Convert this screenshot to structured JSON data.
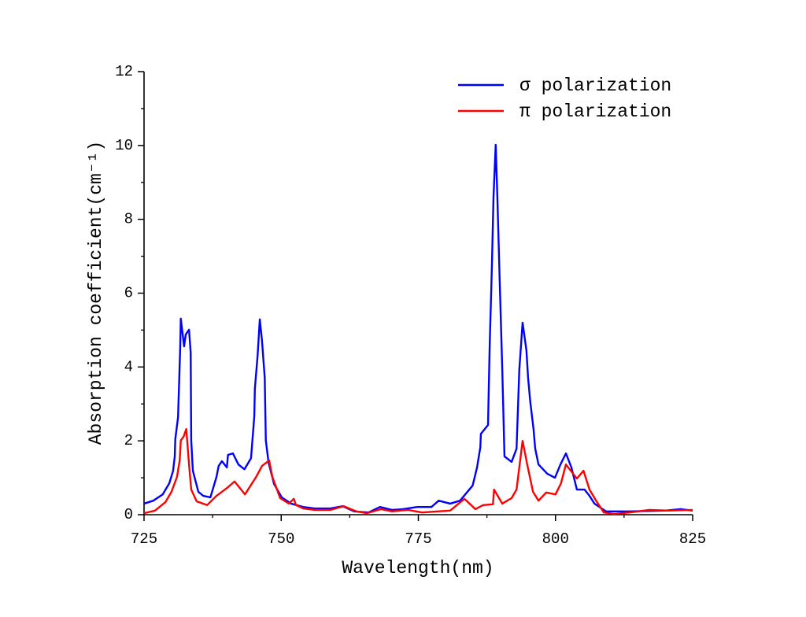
{
  "chart_data": {
    "type": "line",
    "xlabel": "Wavelength(nm)",
    "ylabel": "Absorption coefficient(cm⁻¹)",
    "xlim": [
      725,
      825
    ],
    "ylim": [
      0,
      12
    ],
    "xticks": [
      725,
      750,
      775,
      800,
      825
    ],
    "yticks": [
      0,
      2,
      4,
      6,
      8,
      10,
      12
    ],
    "minor_xticks": [
      737.5,
      762.5,
      787.5,
      812.5
    ],
    "minor_yticks": [
      1,
      3,
      5,
      7,
      9,
      11
    ],
    "legend": "upper right",
    "series": [
      {
        "name": "σ polarization",
        "color": "#0000ff",
        "x": [
          725.0,
          726.7,
          728.4,
          729.6,
          730.3,
          730.6,
          730.7,
          731.2,
          731.5,
          731.6,
          731.7,
          732.3,
          732.6,
          733.2,
          733.5,
          733.6,
          733.9,
          734.9,
          735.8,
          737.1,
          738.2,
          738.6,
          739.2,
          740.1,
          740.3,
          741.2,
          742.2,
          743.3,
          744.5,
          745.1,
          745.2,
          745.7,
          746.1,
          746.5,
          747.0,
          747.2,
          747.7,
          748.7,
          750.1,
          751.8,
          754.0,
          756.1,
          759.0,
          761.2,
          763.3,
          765.9,
          768.0,
          770.2,
          772.2,
          774.8,
          777.4,
          778.7,
          780.8,
          782.6,
          784.9,
          785.7,
          786.3,
          786.4,
          787.7,
          788.0,
          788.4,
          788.7,
          789.1,
          789.4,
          789.8,
          790.3,
          790.7,
          792.0,
          792.9,
          793.4,
          794.0,
          794.7,
          795.0,
          795.4,
          796.0,
          796.3,
          796.9,
          798.5,
          799.9,
          800.9,
          801.9,
          802.9,
          803.9,
          805.3,
          806.2,
          807.1,
          809.2,
          813.5,
          820.0,
          822.8,
          825.0
        ],
        "values": [
          0.3,
          0.38,
          0.55,
          0.85,
          1.19,
          1.58,
          2.05,
          2.64,
          4.09,
          4.56,
          5.31,
          4.56,
          4.88,
          5.01,
          4.39,
          2.01,
          1.19,
          0.62,
          0.51,
          0.47,
          1.02,
          1.32,
          1.45,
          1.28,
          1.62,
          1.66,
          1.36,
          1.23,
          1.53,
          2.67,
          3.41,
          4.31,
          5.29,
          4.71,
          3.71,
          2.01,
          1.41,
          0.83,
          0.47,
          0.3,
          0.21,
          0.17,
          0.17,
          0.23,
          0.09,
          0.06,
          0.21,
          0.13,
          0.15,
          0.21,
          0.21,
          0.38,
          0.3,
          0.38,
          0.79,
          1.28,
          1.83,
          2.19,
          2.43,
          4.56,
          6.69,
          8.61,
          10.02,
          8.61,
          6.48,
          3.92,
          1.58,
          1.43,
          1.79,
          3.92,
          5.2,
          4.45,
          3.71,
          3.06,
          2.31,
          1.79,
          1.36,
          1.11,
          1.0,
          1.36,
          1.66,
          1.28,
          0.68,
          0.68,
          0.51,
          0.3,
          0.09,
          0.09,
          0.11,
          0.15,
          0.11
        ]
      },
      {
        "name": "π polarization",
        "color": "#ff0000",
        "x": [
          725.0,
          727.0,
          728.9,
          730.0,
          731.0,
          731.5,
          731.7,
          732.2,
          732.7,
          733.2,
          733.6,
          734.6,
          736.5,
          738.2,
          740.1,
          741.5,
          743.4,
          745.5,
          746.5,
          747.8,
          748.4,
          749.8,
          751.4,
          752.3,
          752.7,
          754.0,
          756.1,
          759.0,
          761.4,
          763.7,
          765.6,
          768.2,
          770.2,
          773.1,
          775.7,
          778.5,
          780.8,
          783.4,
          785.4,
          786.8,
          788.6,
          788.8,
          790.3,
          792.0,
          792.9,
          794.0,
          794.9,
          795.9,
          796.9,
          798.3,
          800.0,
          801.0,
          801.9,
          803.0,
          803.9,
          805.1,
          806.2,
          807.4,
          808.8,
          810.7,
          813.5,
          817.1,
          820.7,
          825.0
        ],
        "values": [
          0.04,
          0.11,
          0.34,
          0.62,
          1.02,
          1.47,
          2.01,
          2.11,
          2.32,
          1.36,
          0.68,
          0.36,
          0.26,
          0.51,
          0.72,
          0.9,
          0.55,
          1.04,
          1.32,
          1.47,
          1.02,
          0.45,
          0.3,
          0.43,
          0.26,
          0.17,
          0.13,
          0.13,
          0.23,
          0.09,
          0.04,
          0.15,
          0.09,
          0.13,
          0.06,
          0.09,
          0.11,
          0.43,
          0.15,
          0.26,
          0.28,
          0.68,
          0.3,
          0.45,
          0.68,
          2.0,
          1.32,
          0.62,
          0.38,
          0.6,
          0.55,
          0.85,
          1.36,
          1.15,
          0.98,
          1.19,
          0.68,
          0.38,
          0.06,
          0.02,
          0.06,
          0.13,
          0.11,
          0.13
        ]
      }
    ]
  }
}
